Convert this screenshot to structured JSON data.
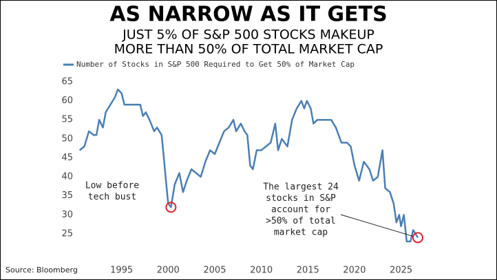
{
  "chart_data": {
    "type": "line",
    "title": "AS NARROW AS IT GETS",
    "subtitle": [
      "JUST 5% OF S&P 500 STOCKS MAKEUP",
      "MORE THAN 50% OF TOTAL MARKET CAP"
    ],
    "source": "Source: Bloomberg",
    "xlim": [
      1990.3,
      2028.5
    ],
    "xticks": [
      1995,
      2000,
      2005,
      2010,
      2015,
      2020,
      2025
    ],
    "ylim": [
      21,
      66.5
    ],
    "yticks": [
      25,
      30,
      35,
      40,
      45,
      50,
      55,
      60,
      65
    ],
    "grid": false,
    "x": [
      1990.5,
      1991,
      1991.5,
      1992,
      1992.3,
      1992.6,
      1993,
      1993.3,
      1993.8,
      1994.3,
      1994.6,
      1995,
      1995.3,
      1996,
      1997,
      1997.3,
      1997.6,
      1998,
      1998.5,
      1998.8,
      1999.3,
      1999.5,
      1999.8,
      2000,
      2000.3,
      2000.7,
      2001.2,
      2001.6,
      2002,
      2002.5,
      2003,
      2003.5,
      2004,
      2004.5,
      2005,
      2005.5,
      2006,
      2006.5,
      2007,
      2007.3,
      2007.8,
      2008.2,
      2008.5,
      2008.8,
      2009.1,
      2009.5,
      2010,
      2010.5,
      2011,
      2011.5,
      2011.8,
      2012.2,
      2012.8,
      2013.3,
      2013.8,
      2014.3,
      2014.6,
      2014.9,
      2015.3,
      2015.6,
      2016,
      2017.5,
      2018,
      2018.6,
      2019.2,
      2019.6,
      2020,
      2020.5,
      2021,
      2021.6,
      2022,
      2022.5,
      2023,
      2023.3,
      2023.8,
      2024.2,
      2024.5,
      2024.8,
      2025,
      2025.3,
      2025.6,
      2026,
      2026.3,
      2026.8
    ],
    "series": [
      {
        "name": "Number of Stocks in S&P 500 Required to Get 50% of Market Cap",
        "color": "#4a7eb3",
        "values": [
          47,
          48,
          52,
          51,
          51,
          55,
          53,
          57,
          59,
          61,
          63,
          62,
          59,
          59,
          59,
          56,
          57,
          55,
          52,
          53,
          51,
          46,
          38,
          33,
          32,
          38,
          41,
          36,
          39,
          42,
          41,
          40,
          44,
          47,
          46,
          49,
          52,
          53,
          55,
          52,
          54,
          52,
          51,
          43,
          42,
          47,
          47,
          48,
          49,
          54,
          47,
          50,
          48,
          55,
          58,
          60,
          58,
          60,
          58,
          54,
          55,
          55,
          53,
          49,
          49,
          48,
          43,
          39,
          44,
          42,
          39,
          40,
          47,
          37,
          36,
          33,
          28,
          30,
          27,
          30,
          23,
          23,
          26,
          24
        ]
      }
    ],
    "annotations": [
      {
        "text": [
          "Low before",
          "tech bust"
        ],
        "point": [
          2000.3,
          32
        ]
      },
      {
        "text": [
          "The largest 24",
          "stocks in S&P",
          "account for",
          ">50% of total",
          "market cap"
        ],
        "point": [
          2026.8,
          24
        ]
      }
    ]
  }
}
